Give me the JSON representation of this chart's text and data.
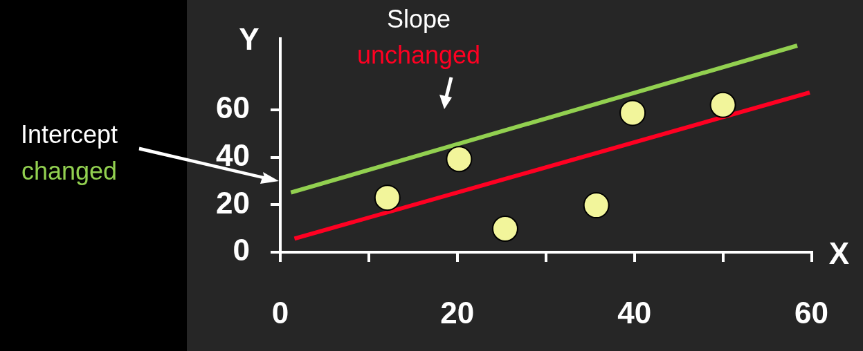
{
  "chart_data": {
    "type": "scatter",
    "xlabel": "X",
    "ylabel": "Y",
    "annotations": [
      "Intercept",
      "changed",
      "Slope",
      "unchanged"
    ],
    "series": [
      {
        "marker": "circle",
        "color": "#f2f59b",
        "x": [
          12.1,
          20.2,
          25.4,
          35.7,
          39.8,
          50
        ],
        "values": [
          23,
          39.3,
          9.9,
          19.8,
          58.8,
          62.2
        ]
      },
      {
        "type": "line",
        "color": "#92d050",
        "x": [
          1.2,
          58.4
        ],
        "values": [
          25.2,
          87.2
        ]
      },
      {
        "type": "line",
        "color": "#ff0022",
        "x": [
          1.6,
          59.8
        ],
        "values": [
          5.7,
          67.4
        ]
      }
    ],
    "xlim": [
      0,
      60
    ],
    "ylim": [
      0,
      90
    ],
    "xticks": [
      0,
      {
        "value": 10,
        "label": null
      },
      20,
      {
        "value": 30,
        "label": null
      },
      40,
      {
        "value": 50,
        "label": null
      },
      60
    ],
    "yticks": [
      0,
      20,
      40,
      60
    ],
    "grid": false,
    "legend": false
  }
}
